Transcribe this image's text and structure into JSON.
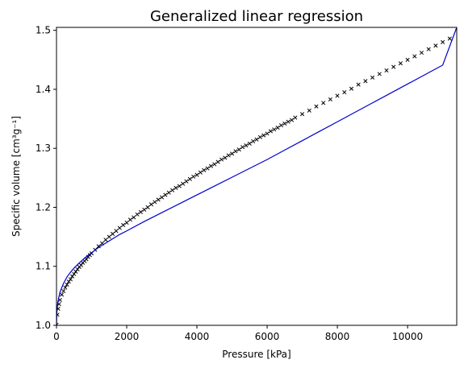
{
  "chart_data": {
    "type": "scatter",
    "title": "Generalized linear regression",
    "xlabel": "Pressure [kPa]",
    "ylabel": "Specific volume [cm³g⁻¹]",
    "xlim": [
      0,
      11400
    ],
    "ylim": [
      1.0,
      1.505
    ],
    "xticks": [
      "0",
      "2000",
      "4000",
      "6000",
      "8000",
      "10000"
    ],
    "yticks": [
      "1.0",
      "1.1",
      "1.2",
      "1.3",
      "1.4",
      "1.5"
    ],
    "grid": false,
    "colors": {
      "points": "#000000",
      "fit": "#0000cc"
    },
    "series": [
      {
        "kind": "scatter",
        "marker": "x",
        "x": [
          0,
          25,
          50,
          75,
          100,
          150,
          200,
          250,
          300,
          350,
          400,
          450,
          500,
          550,
          600,
          650,
          700,
          750,
          800,
          850,
          900,
          950,
          1000,
          1100,
          1200,
          1300,
          1400,
          1500,
          1600,
          1700,
          1800,
          1900,
          2000,
          2100,
          2200,
          2300,
          2400,
          2500,
          2600,
          2700,
          2800,
          2900,
          3000,
          3100,
          3200,
          3300,
          3400,
          3500,
          3600,
          3700,
          3800,
          3900,
          4000,
          4100,
          4200,
          4300,
          4400,
          4500,
          4600,
          4700,
          4800,
          4900,
          5000,
          5100,
          5200,
          5300,
          5400,
          5500,
          5600,
          5700,
          5800,
          5900,
          6000,
          6100,
          6200,
          6300,
          6400,
          6500,
          6600,
          6700,
          6800,
          7000,
          7200,
          7400,
          7600,
          7800,
          8000,
          8200,
          8400,
          8600,
          8800,
          9000,
          9200,
          9400,
          9600,
          9800,
          10000,
          10200,
          10400,
          10600,
          10800,
          11000,
          11200
        ],
        "y": [
          1.001,
          1.018,
          1.028,
          1.036,
          1.043,
          1.052,
          1.058,
          1.064,
          1.069,
          1.074,
          1.078,
          1.083,
          1.087,
          1.091,
          1.095,
          1.099,
          1.102,
          1.106,
          1.109,
          1.112,
          1.116,
          1.119,
          1.122,
          1.128,
          1.134,
          1.139,
          1.145,
          1.15,
          1.155,
          1.16,
          1.165,
          1.17,
          1.174,
          1.179,
          1.183,
          1.188,
          1.192,
          1.196,
          1.2,
          1.205,
          1.209,
          1.213,
          1.217,
          1.221,
          1.225,
          1.229,
          1.233,
          1.236,
          1.24,
          1.244,
          1.248,
          1.252,
          1.255,
          1.259,
          1.263,
          1.266,
          1.27,
          1.273,
          1.277,
          1.281,
          1.284,
          1.288,
          1.291,
          1.295,
          1.298,
          1.302,
          1.305,
          1.308,
          1.312,
          1.315,
          1.319,
          1.322,
          1.325,
          1.329,
          1.332,
          1.335,
          1.339,
          1.342,
          1.345,
          1.348,
          1.352,
          1.358,
          1.364,
          1.371,
          1.377,
          1.383,
          1.389,
          1.395,
          1.401,
          1.408,
          1.414,
          1.42,
          1.426,
          1.432,
          1.438,
          1.444,
          1.45,
          1.456,
          1.462,
          1.468,
          1.474,
          1.48,
          1.486
        ]
      },
      {
        "kind": "line",
        "x": [
          0,
          10,
          30,
          60,
          100,
          150,
          200,
          300,
          400,
          500,
          600,
          800,
          1000,
          1200,
          1500,
          1800,
          2000,
          2500,
          3000,
          3500,
          4000,
          4500,
          5000,
          5500,
          6000,
          6500,
          7000,
          7500,
          8000,
          8500,
          9000,
          9500,
          10000,
          10500,
          11000,
          11400
        ],
        "y": [
          1.0,
          1.021,
          1.035,
          1.046,
          1.056,
          1.064,
          1.071,
          1.082,
          1.09,
          1.097,
          1.103,
          1.114,
          1.123,
          1.132,
          1.143,
          1.154,
          1.16,
          1.176,
          1.191,
          1.206,
          1.221,
          1.236,
          1.251,
          1.266,
          1.281,
          1.297,
          1.313,
          1.329,
          1.345,
          1.361,
          1.377,
          1.393,
          1.409,
          1.425,
          1.441,
          1.505
        ]
      }
    ]
  }
}
